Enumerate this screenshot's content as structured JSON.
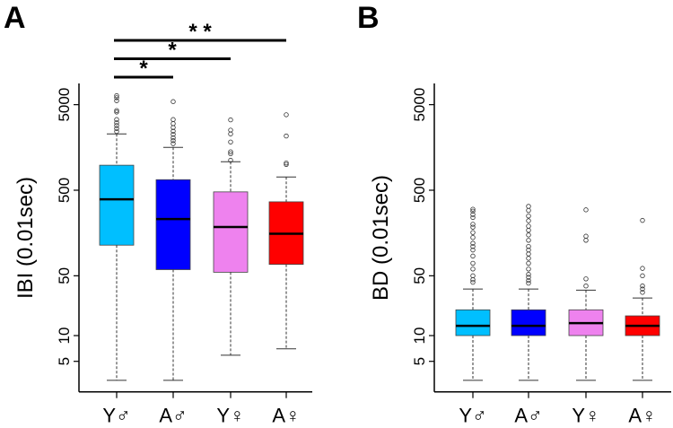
{
  "chart_data": [
    {
      "type": "box",
      "panel_label": "A",
      "ylabel": "IBI (0.01sec)",
      "yscale": "log",
      "ylim": [
        2.2,
        8850
      ],
      "yticks": [
        5,
        10,
        50,
        500,
        5000
      ],
      "ytick_labels": [
        "5",
        "10",
        "50",
        "500",
        "5000"
      ],
      "categories": [
        "Y♂",
        "A♂",
        "Y♀",
        "A♀"
      ],
      "colors": [
        "#00BFFF",
        "#0000FF",
        "#EE82EE",
        "#FF0000"
      ],
      "boxes": [
        {
          "whisker_low": 3,
          "q1": 114,
          "median": 391,
          "q3": 980,
          "whisker_high": 2275,
          "outliers": [
            6370,
            6030,
            5560,
            4270,
            4100,
            3350,
            3080,
            2850,
            2630,
            2430
          ]
        },
        {
          "whisker_low": 3,
          "q1": 59,
          "median": 230,
          "q3": 664,
          "whisker_high": 1585,
          "outliers": [
            5430,
            3350,
            3000,
            2700,
            2450,
            2250,
            2050,
            1900,
            1750
          ]
        },
        {
          "whisker_low": 5.9,
          "q1": 55,
          "median": 186,
          "q3": 478,
          "whisker_high": 1076,
          "outliers": [
            3320,
            2520,
            2275,
            1830,
            1405,
            1335,
            1120
          ]
        },
        {
          "whisker_low": 7,
          "q1": 68,
          "median": 155,
          "q3": 366,
          "whisker_high": 714,
          "outliers": [
            3810,
            2150,
            1040,
            1000
          ]
        }
      ],
      "significance": [
        {
          "from": 0,
          "to": 3,
          "label": "* *"
        },
        {
          "from": 0,
          "to": 2,
          "label": "*"
        },
        {
          "from": 0,
          "to": 1,
          "label": "*"
        }
      ]
    },
    {
      "type": "box",
      "panel_label": "B",
      "ylabel": "BD (0.01sec)",
      "yscale": "log",
      "ylim": [
        2.2,
        8850
      ],
      "yticks": [
        5,
        10,
        50,
        500,
        5000
      ],
      "ytick_labels": [
        "5",
        "10",
        "50",
        "500",
        "5000"
      ],
      "categories": [
        "Y♂",
        "A♂",
        "Y♀",
        "A♀"
      ],
      "colors": [
        "#00BFFF",
        "#0000FF",
        "#EE82EE",
        "#FF0000"
      ],
      "boxes": [
        {
          "whisker_low": 3,
          "q1": 10,
          "median": 13,
          "q3": 20,
          "whisker_high": 35,
          "outliers": [
            300,
            285,
            260,
            240,
            200,
            185,
            160,
            140,
            120,
            110,
            100,
            85,
            70,
            60,
            50,
            45,
            42
          ]
        },
        {
          "whisker_low": 3,
          "q1": 10,
          "median": 13,
          "q3": 20,
          "whisker_high": 35,
          "outliers": [
            324,
            290,
            250,
            220,
            190,
            170,
            150,
            130,
            110,
            100,
            90,
            80,
            70,
            60,
            52,
            48,
            44,
            41
          ]
        },
        {
          "whisker_low": 3,
          "q1": 10,
          "median": 14,
          "q3": 20,
          "whisker_high": 34,
          "outliers": [
            295,
            145,
            130,
            46,
            38
          ]
        },
        {
          "whisker_low": 3,
          "q1": 10,
          "median": 13,
          "q3": 17,
          "whisker_high": 27.5,
          "outliers": [
            222,
            61,
            50,
            38,
            35,
            32
          ]
        }
      ]
    }
  ]
}
